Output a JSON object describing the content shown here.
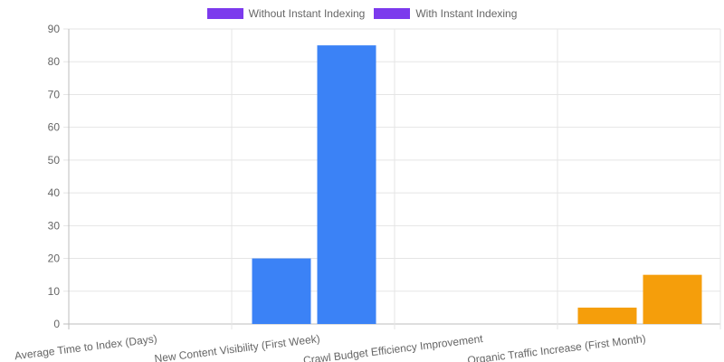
{
  "legend": [
    {
      "label": "Without Instant Indexing",
      "color": "#7c3aed"
    },
    {
      "label": "With Instant Indexing",
      "color": "#7c3aed"
    }
  ],
  "chart_data": {
    "type": "bar",
    "title": "",
    "xlabel": "",
    "ylabel": "",
    "ylim": [
      0,
      90
    ],
    "yticks": [
      0,
      10,
      20,
      30,
      40,
      50,
      60,
      70,
      80,
      90
    ],
    "grid": true,
    "legend_position": "top",
    "categories": [
      "Average Time to Index (Days)",
      "New Content Visibility (First Week)",
      "Crawl Budget Efficiency Improvement",
      "Organic Traffic Increase (First Month)"
    ],
    "series": [
      {
        "name": "Without Instant Indexing",
        "values": [
          null,
          20,
          null,
          5
        ]
      },
      {
        "name": "With Instant Indexing",
        "values": [
          null,
          85,
          null,
          15
        ]
      }
    ],
    "bar_colors": [
      null,
      "#3b82f6",
      null,
      "#f59e0b"
    ]
  }
}
